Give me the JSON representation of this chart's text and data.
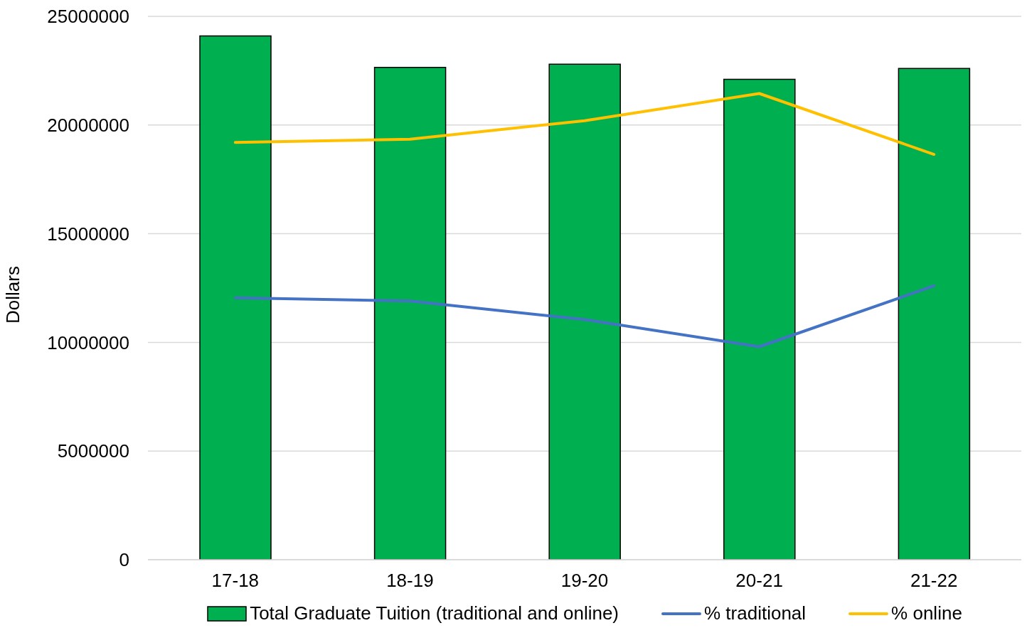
{
  "chart_data": {
    "type": "bar",
    "ylabel": "Dollars",
    "categories": [
      "17-18",
      "18-19",
      "19-20",
      "20-21",
      "21-22"
    ],
    "series": [
      {
        "name": "Total Graduate Tuition (traditional and online)",
        "color": "#00b050",
        "values": [
          24100000,
          22650000,
          22800000,
          22100000,
          22600000
        ]
      },
      {
        "name": "% traditional",
        "type": "line",
        "color": "#4472c4",
        "values": [
          12050000,
          11900000,
          11050000,
          9800000,
          12600000
        ]
      },
      {
        "name": "% online",
        "type": "line",
        "color": "#ffc000",
        "values": [
          19200000,
          19350000,
          20200000,
          21450000,
          18650000
        ]
      }
    ],
    "ylim": [
      0,
      25000000
    ],
    "yticks": [
      0,
      5000000,
      10000000,
      15000000,
      20000000,
      25000000
    ],
    "grid": "y",
    "legend": "bottom",
    "marker": "none"
  }
}
